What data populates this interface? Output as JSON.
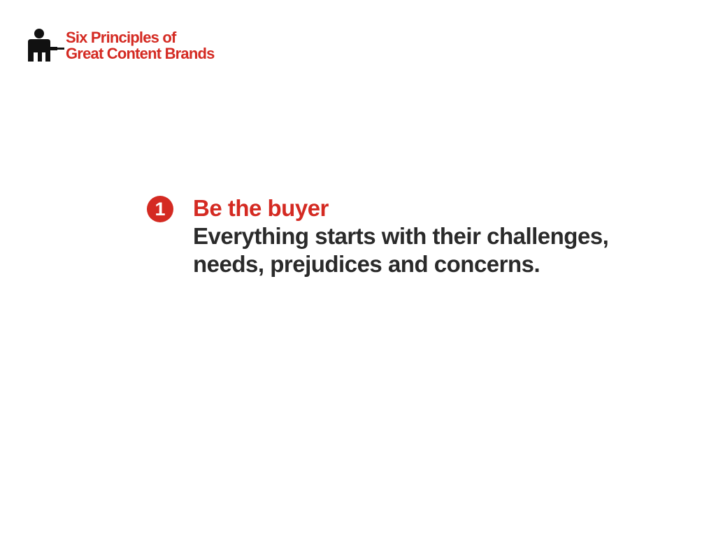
{
  "header": {
    "icon": "presenter-icon",
    "title_line1": "Six Principles of",
    "title_line2": "Great Content Brands"
  },
  "principle": {
    "number": "1",
    "title": "Be the buyer",
    "body": "Everything starts with their challenges, needs, prejudices and concerns."
  },
  "colors": {
    "accent": "#d42a22",
    "text": "#2a2a2a",
    "background": "#ffffff"
  }
}
